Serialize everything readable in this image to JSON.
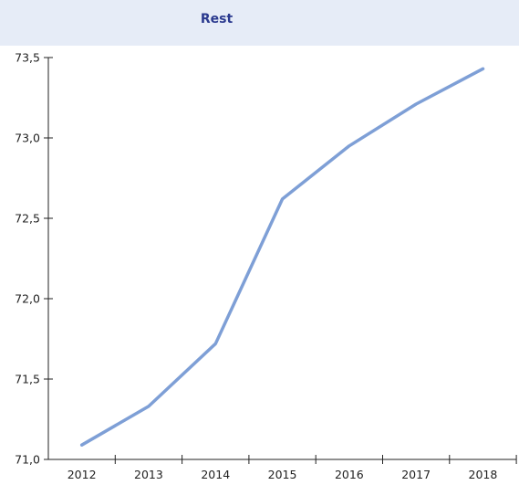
{
  "chart_data": {
    "type": "line",
    "title": "Rest",
    "xlabel": "",
    "ylabel": "",
    "categories": [
      "2012",
      "2013",
      "2014",
      "2015",
      "2016",
      "2017",
      "2018"
    ],
    "series": [
      {
        "values": [
          71.09,
          71.33,
          71.72,
          72.62,
          72.95,
          73.21,
          73.43
        ]
      }
    ],
    "ylim": [
      71.0,
      73.5
    ],
    "yticks": [
      71.0,
      71.5,
      72.0,
      72.5,
      73.0,
      73.5
    ],
    "ytick_labels": [
      "71,0",
      "71,5",
      "72,0",
      "72,5",
      "73,0",
      "73,5"
    ],
    "grid": false,
    "legend": "none",
    "line_color": "#7e9fd6",
    "title_band_color": "#e6ecf7",
    "title_color": "#2b3a8f"
  }
}
